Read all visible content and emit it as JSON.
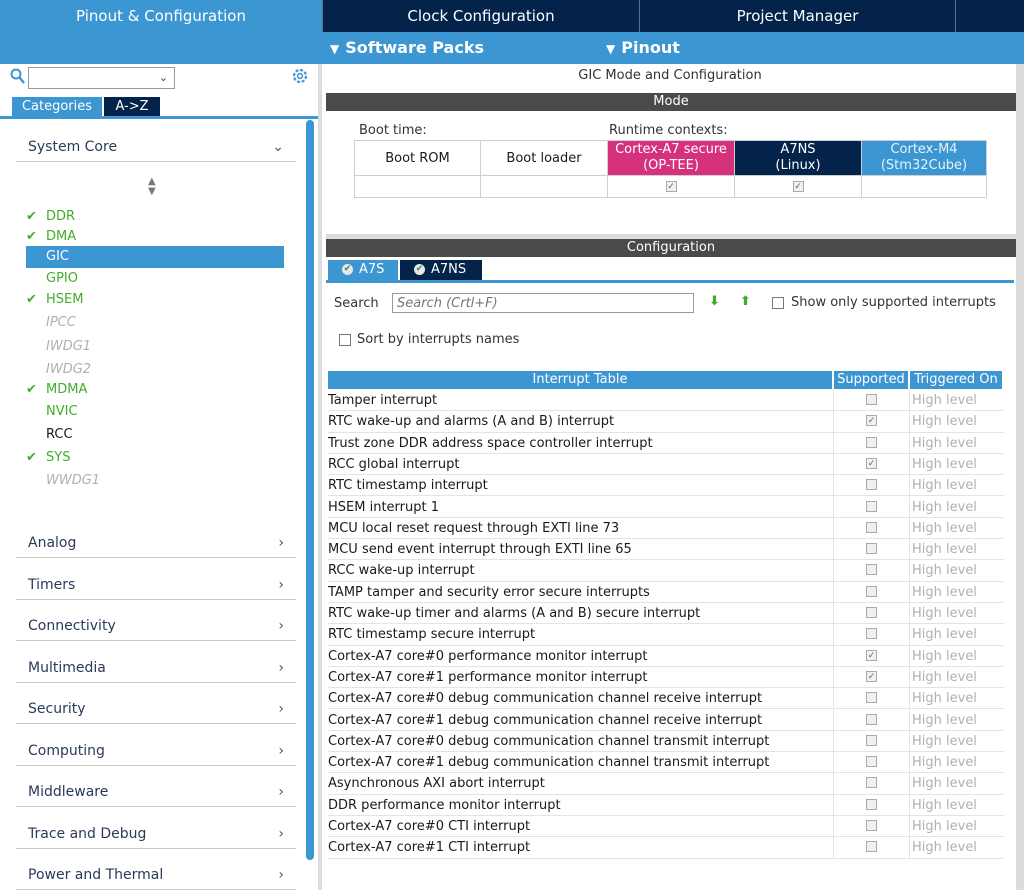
{
  "top_tabs": [
    {
      "label": "Pinout & Configuration",
      "active": true
    },
    {
      "label": "Clock Configuration",
      "active": false
    },
    {
      "label": "Project Manager",
      "active": false
    }
  ],
  "sub_menu": [
    {
      "label": "Software Packs"
    },
    {
      "label": "Pinout"
    }
  ],
  "left": {
    "search": {
      "value": ""
    },
    "category_tabs": [
      "Categories",
      "A->Z"
    ],
    "system_core": {
      "label": "System Core",
      "peripherals": [
        {
          "name": "DDR",
          "state": "checked"
        },
        {
          "name": "DMA",
          "state": "checked"
        },
        {
          "name": "GIC",
          "state": "selected"
        },
        {
          "name": "GPIO",
          "state": "available"
        },
        {
          "name": "HSEM",
          "state": "checked"
        },
        {
          "name": "IPCC",
          "state": "disabled"
        },
        {
          "name": "IWDG1",
          "state": "disabled"
        },
        {
          "name": "IWDG2",
          "state": "disabled"
        },
        {
          "name": "MDMA",
          "state": "checked"
        },
        {
          "name": "NVIC",
          "state": "available"
        },
        {
          "name": "RCC",
          "state": "default"
        },
        {
          "name": "SYS",
          "state": "checked"
        },
        {
          "name": "WWDG1",
          "state": "disabled"
        }
      ]
    },
    "categories": [
      "Analog",
      "Timers",
      "Connectivity",
      "Multimedia",
      "Security",
      "Computing",
      "Middleware",
      "Trace and Debug",
      "Power and Thermal"
    ]
  },
  "right": {
    "title": "GIC Mode and Configuration",
    "mode_bar": "Mode",
    "boot_time_label": "Boot time:",
    "runtime_label": "Runtime contexts:",
    "mode_cols": [
      {
        "label": "Boot ROM",
        "checked": false,
        "style": "plain"
      },
      {
        "label": "Boot loader",
        "checked": false,
        "style": "plain"
      },
      {
        "label": "Cortex-A7 secure\n(OP-TEE)",
        "checked": true,
        "style": "pink"
      },
      {
        "label": "A7NS\n(Linux)",
        "checked": true,
        "style": "navy"
      },
      {
        "label": "Cortex-M4\n(Stm32Cube)",
        "checked": false,
        "style": "blue"
      }
    ],
    "config_bar": "Configuration",
    "config_tabs": [
      "A7S",
      "A7NS"
    ],
    "search_label": "Search",
    "search_placeholder": "Search (Crtl+F)",
    "show_supported_label": "Show only supported interrupts",
    "sort_label": "Sort by interrupts names",
    "table": {
      "headers": [
        "Interrupt Table",
        "Supported",
        "Triggered On"
      ],
      "rows": [
        {
          "name": "Tamper interrupt",
          "supported": false,
          "trigger": "High level"
        },
        {
          "name": "RTC wake-up and alarms (A and B) interrupt",
          "supported": true,
          "trigger": "High level"
        },
        {
          "name": "Trust zone DDR address space controller interrupt",
          "supported": false,
          "trigger": "High level"
        },
        {
          "name": "RCC global interrupt",
          "supported": true,
          "trigger": "High level"
        },
        {
          "name": "RTC timestamp interrupt",
          "supported": false,
          "trigger": "High level"
        },
        {
          "name": "HSEM interrupt 1",
          "supported": false,
          "trigger": "High level"
        },
        {
          "name": "MCU local reset request through EXTI line 73",
          "supported": false,
          "trigger": "High level"
        },
        {
          "name": "MCU send event interrupt through EXTI line 65",
          "supported": false,
          "trigger": "High level"
        },
        {
          "name": "RCC wake-up interrupt",
          "supported": false,
          "trigger": "High level"
        },
        {
          "name": "TAMP tamper and security error secure interrupts",
          "supported": false,
          "trigger": "High level"
        },
        {
          "name": "RTC wake-up timer and alarms (A and B) secure interrupt",
          "supported": false,
          "trigger": "High level"
        },
        {
          "name": "RTC timestamp secure interrupt",
          "supported": false,
          "trigger": "High level"
        },
        {
          "name": "Cortex-A7 core#0 performance monitor interrupt",
          "supported": true,
          "trigger": "High level"
        },
        {
          "name": "Cortex-A7 core#1 performance monitor interrupt",
          "supported": true,
          "trigger": "High level"
        },
        {
          "name": "Cortex-A7 core#0 debug communication channel receive interrupt",
          "supported": false,
          "trigger": "High level"
        },
        {
          "name": "Cortex-A7 core#1 debug communication channel receive interrupt",
          "supported": false,
          "trigger": "High level"
        },
        {
          "name": "Cortex-A7 core#0 debug communication channel transmit interrupt",
          "supported": false,
          "trigger": "High level"
        },
        {
          "name": "Cortex-A7 core#1 debug communication channel transmit interrupt",
          "supported": false,
          "trigger": "High level"
        },
        {
          "name": "Asynchronous AXI abort interrupt",
          "supported": false,
          "trigger": "High level"
        },
        {
          "name": "DDR performance monitor interrupt",
          "supported": false,
          "trigger": "High level"
        },
        {
          "name": "Cortex-A7 core#0 CTI interrupt",
          "supported": false,
          "trigger": "High level"
        },
        {
          "name": "Cortex-A7 core#1 CTI interrupt",
          "supported": false,
          "trigger": "High level"
        }
      ]
    }
  },
  "colors": {
    "accent_blue": "#3c96d2",
    "navy": "#03234b",
    "pink": "#d6317d",
    "check_green": "#3fae2a",
    "dark_bar": "#4a4a4a"
  }
}
